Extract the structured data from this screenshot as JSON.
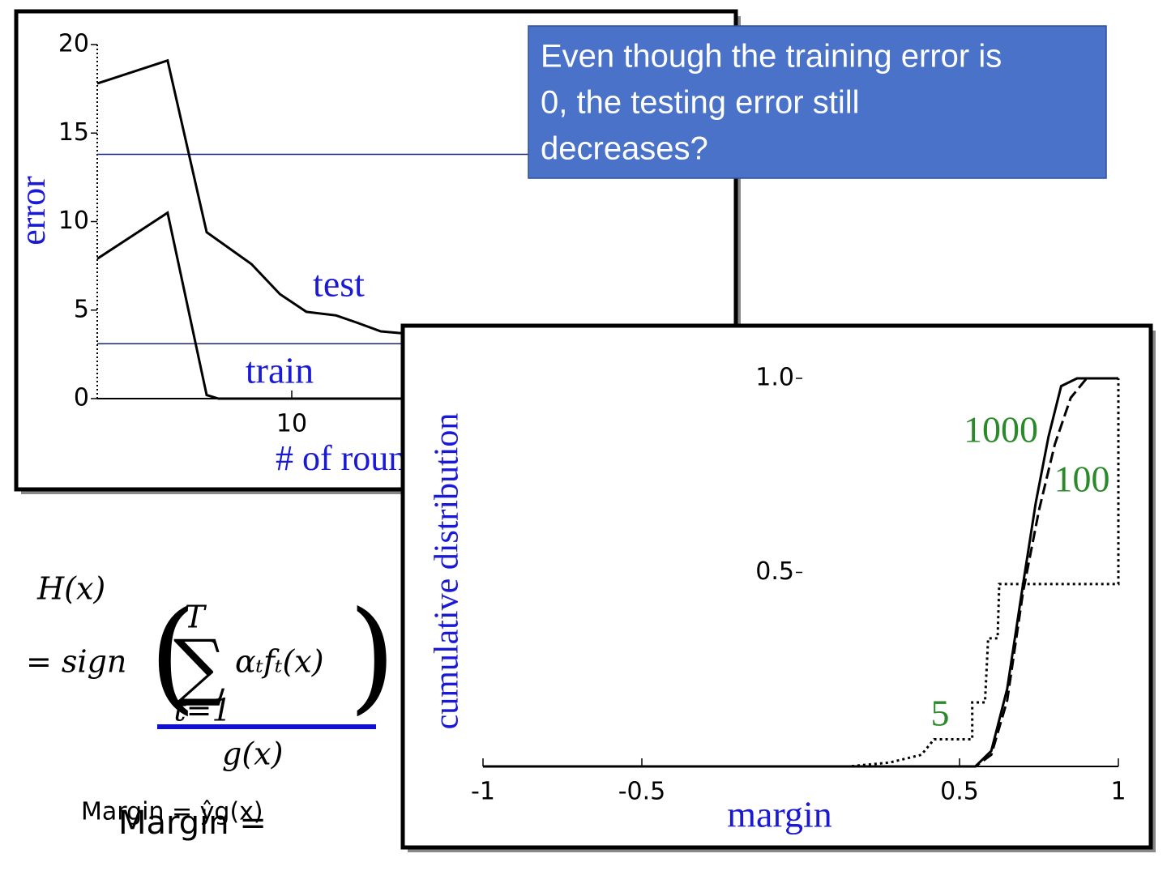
{
  "chart_data": [
    {
      "type": "line",
      "x_scale": "log",
      "xlabel": "# of rounds",
      "ylabel": "error",
      "xlim": [
        1,
        1000
      ],
      "xticks": [
        10
      ],
      "ylim": [
        0,
        20
      ],
      "yticks": [
        0,
        5,
        10,
        15,
        20
      ],
      "hlines": [
        13.8,
        3.1
      ],
      "hline_color": "#1a237e",
      "series": [
        {
          "name": "test",
          "color": "#000000",
          "dash": "solid",
          "label_color": "#1a1ad6",
          "x": [
            1,
            2.3,
            3.65,
            6.2,
            8.7,
            11.9,
            16.9,
            21.5,
            28.7,
            36.5
          ],
          "values": [
            17.8,
            19.1,
            9.4,
            7.6,
            5.9,
            4.9,
            4.7,
            4.3,
            3.8,
            3.7
          ]
        },
        {
          "name": "train",
          "color": "#000000",
          "dash": "solid",
          "label_color": "#1a1ad6",
          "x": [
            1,
            2.3,
            3.65,
            4.2,
            36.5
          ],
          "values": [
            7.9,
            10.5,
            0.2,
            0,
            0
          ]
        }
      ]
    },
    {
      "type": "line",
      "x_scale": "linear",
      "xlabel": "margin",
      "ylabel": "cumulative distribution",
      "xlim": [
        -1,
        1
      ],
      "xticks": [
        -1,
        -0.5,
        0.5,
        1
      ],
      "ylim": [
        0,
        1
      ],
      "yticks": [
        0.5,
        {
          "value": 1,
          "label": "1.0"
        }
      ],
      "series": [
        {
          "name": "5",
          "color": "#000000",
          "dash": "dotted",
          "label_color": "#2a8a2a",
          "x": [
            -1,
            0.15,
            0.28,
            0.38,
            0.42,
            0.54,
            0.54,
            0.58,
            0.59,
            0.62,
            0.625,
            1,
            1
          ],
          "values": [
            0,
            0,
            0.01,
            0.03,
            0.07,
            0.07,
            0.165,
            0.165,
            0.33,
            0.33,
            0.47,
            0.47,
            1
          ]
        },
        {
          "name": "100",
          "color": "#000000",
          "dash": "dashed",
          "label_color": "#2a8a2a",
          "x": [
            -1,
            0.55,
            0.6,
            0.65,
            0.7,
            0.75,
            0.8,
            0.85,
            0.9,
            1
          ],
          "values": [
            0,
            0,
            0.03,
            0.17,
            0.45,
            0.66,
            0.83,
            0.95,
            1,
            1
          ]
        },
        {
          "name": "1000",
          "color": "#000000",
          "dash": "solid",
          "label_color": "#2a8a2a",
          "x": [
            -1,
            0.55,
            0.6,
            0.65,
            0.7,
            0.74,
            0.78,
            0.82,
            0.87,
            1
          ],
          "values": [
            0,
            0,
            0.04,
            0.2,
            0.47,
            0.68,
            0.85,
            0.98,
            1,
            1
          ]
        }
      ]
    }
  ],
  "callout": {
    "text": [
      "Even though the training error is",
      "0, the testing error still",
      "decreases?"
    ]
  },
  "formula": {
    "lhs": "H(x)",
    "rhs": "= sign",
    "upper": "T",
    "lower": "t=1",
    "term": "αₜfₜ(x)",
    "under": "g(x)",
    "margin_small": "Margin = ŷg(x)",
    "margin_large": "Margin ="
  }
}
